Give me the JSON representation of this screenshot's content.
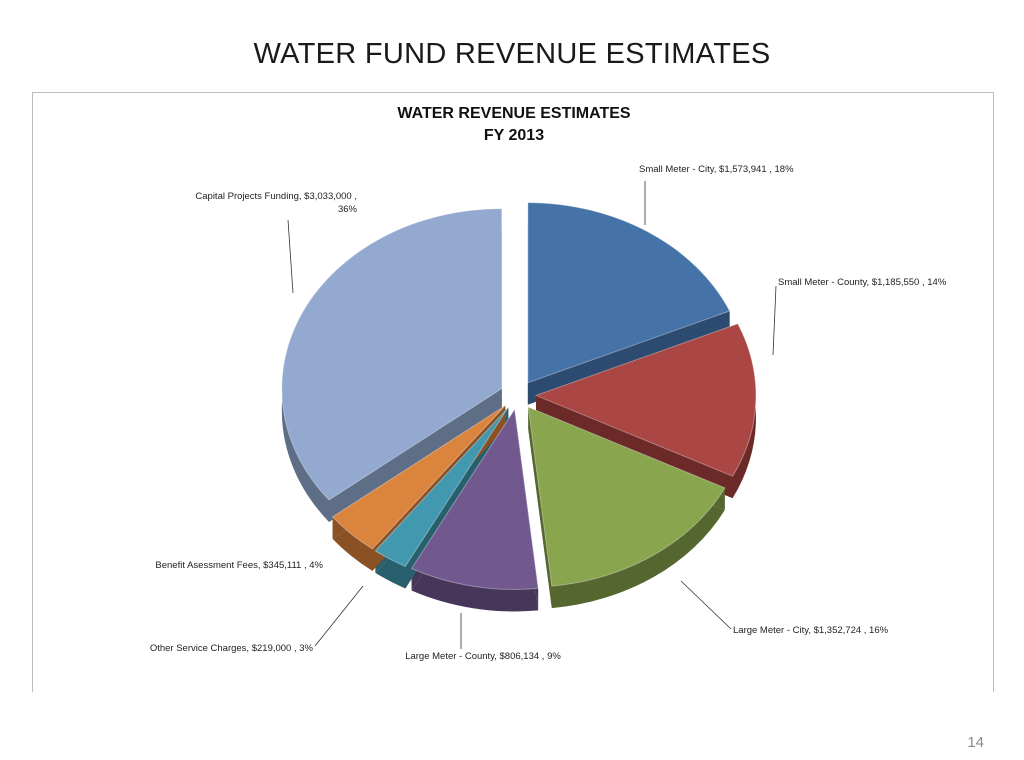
{
  "slide": {
    "title": "WATER FUND REVENUE ESTIMATES",
    "page_number": "14"
  },
  "chart_data": {
    "type": "pie",
    "title": "WATER REVENUE ESTIMATES",
    "subtitle": "FY 2013",
    "exploded": true,
    "three_d": true,
    "slices": [
      {
        "label": "Small Meter - City",
        "value": 1573941,
        "percent": 18,
        "data_label": "Small Meter - City, $1,573,941 , 18%",
        "color": "#4572a7",
        "side_color": "#2d4b70"
      },
      {
        "label": "Small Meter - County",
        "value": 1185550,
        "percent": 14,
        "data_label": "Small Meter - County, $1,185,550 , 14%",
        "color": "#aa4643",
        "side_color": "#6b2a28"
      },
      {
        "label": "Large Meter - City",
        "value": 1352724,
        "percent": 16,
        "data_label": "Large Meter - City, $1,352,724 , 16%",
        "color": "#89a54e",
        "side_color": "#55672f"
      },
      {
        "label": "Large Meter - County",
        "value": 806134,
        "percent": 9,
        "data_label": "Large Meter - County, $806,134 , 9%",
        "color": "#71588f",
        "side_color": "#463659"
      },
      {
        "label": "Other Service Charges",
        "value": 219000,
        "percent": 3,
        "data_label": "Other Service Charges, $219,000 , 3%",
        "color": "#4198af",
        "side_color": "#285f6d"
      },
      {
        "label": "Benefit Asessment Fees",
        "value": 345111,
        "percent": 4,
        "data_label": "Benefit Asessment Fees, $345,111 , 4%",
        "color": "#db843d",
        "side_color": "#8a5125"
      },
      {
        "label": "Capital Projects Funding",
        "value": 3033000,
        "percent": 36,
        "data_label_lines": [
          "Capital Projects Funding, $3,033,000 ,",
          "36%"
        ],
        "color": "#93a9cf",
        "side_color": "#5e6e87"
      }
    ]
  }
}
